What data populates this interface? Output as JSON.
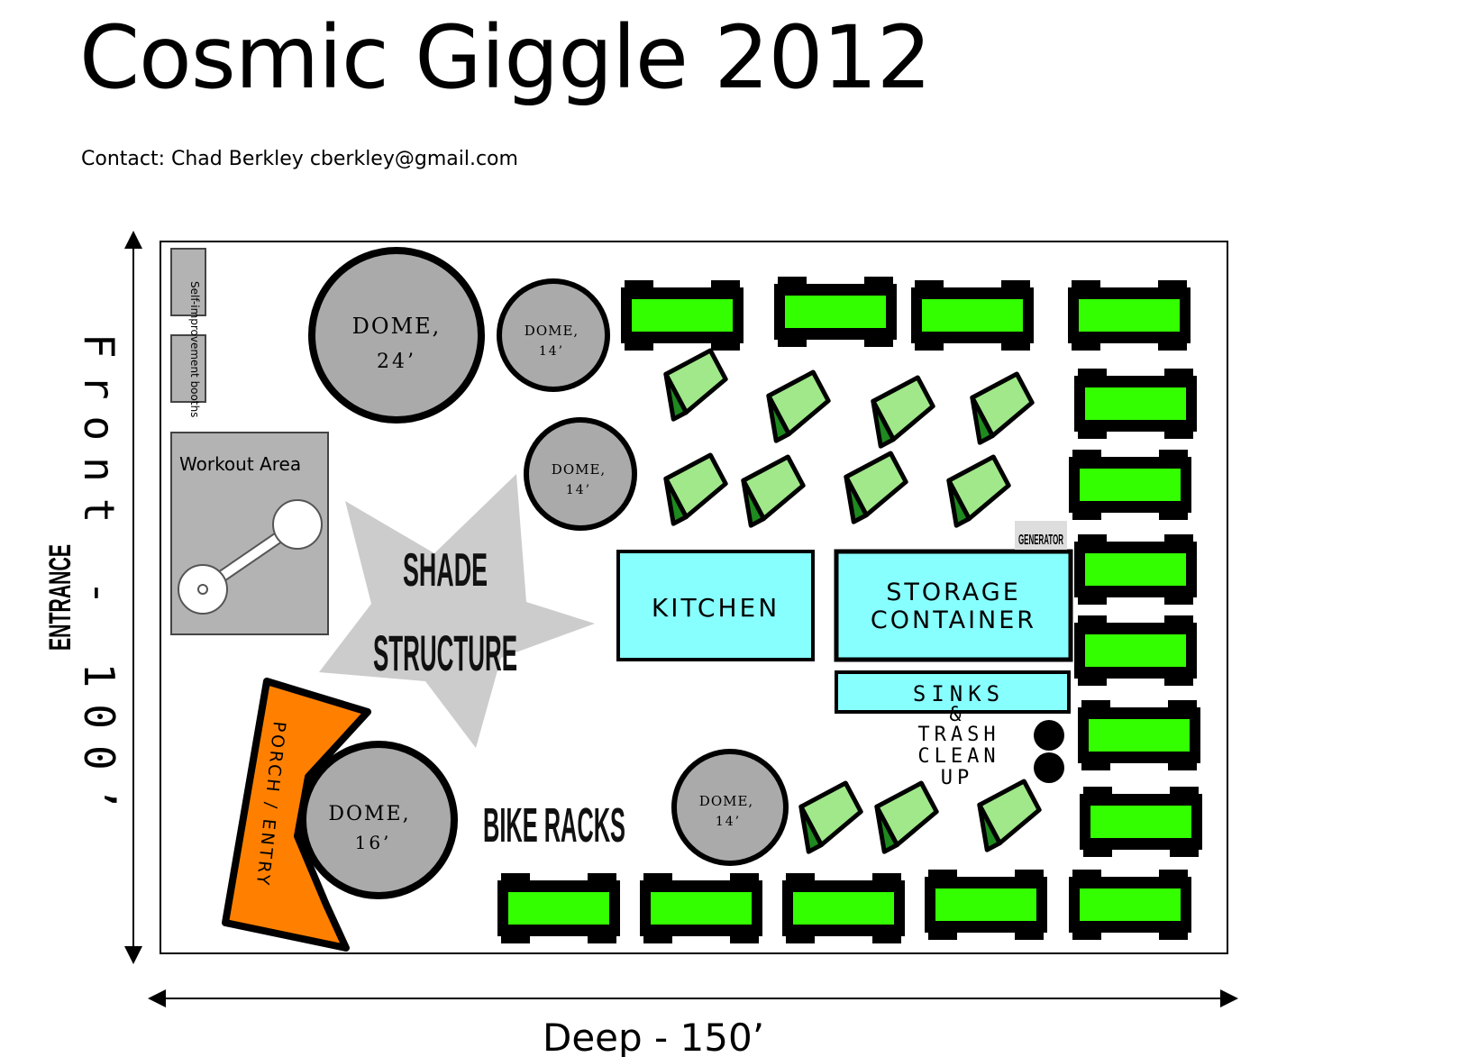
{
  "title": "Cosmic Giggle 2012",
  "contact": "Contact:  Chad Berkley cberkley@gmail.com",
  "dimensions": {
    "front": "Front - 100’",
    "deep": "Deep - 150’",
    "entrance": "ENTRANCE"
  },
  "labels": {
    "self_improvement": "Self-improvement booths",
    "workout": "Workout Area",
    "shade_line1": "SHADE",
    "shade_line2": "STRUCTURE",
    "porch": "PORCH / ENTRY",
    "bike_racks": "BIKE RACKS",
    "kitchen": "KITCHEN",
    "storage_line1": "STORAGE",
    "storage_line2": "CONTAINER",
    "sinks": "SINKS",
    "trash_line1": "&",
    "trash_line2": "TRASH",
    "trash_line3": "CLEAN",
    "trash_line4": "UP",
    "generator": "GENERATOR"
  },
  "domes": {
    "d24": {
      "line1": "DOME,",
      "line2": "24’"
    },
    "d14a": {
      "line1": "DOME,",
      "line2": "14’"
    },
    "d14b": {
      "line1": "DOME,",
      "line2": "14’"
    },
    "d16": {
      "line1": "DOME,",
      "line2": "16’"
    },
    "d14c": {
      "line1": "DOME,",
      "line2": "14’"
    }
  },
  "colors": {
    "vehicle": "#33ff00",
    "tent_dark": "#1f8a1f",
    "tent_light": "#a0e88a",
    "structure": "#88ffff",
    "dome": "#aaaaaa",
    "porch": "#ff8000",
    "shade": "#cccccc",
    "workout": "#b3b3b3"
  }
}
